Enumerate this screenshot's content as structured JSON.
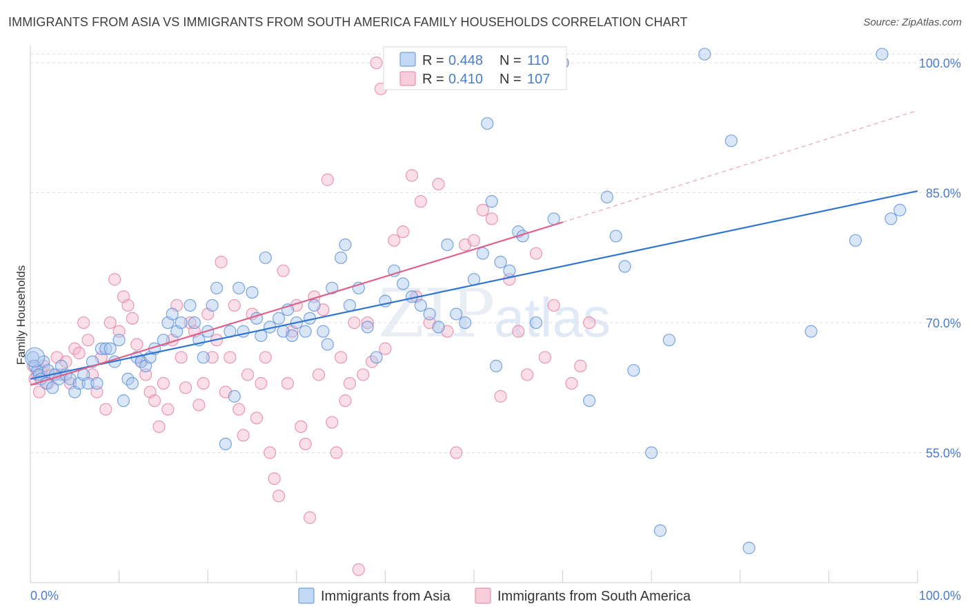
{
  "header": {
    "title": "IMMIGRANTS FROM ASIA VS IMMIGRANTS FROM SOUTH AMERICA FAMILY HOUSEHOLDS CORRELATION CHART",
    "source": "Source: ZipAtlas.com"
  },
  "watermark": {
    "zip": "ZIP",
    "atlas": "atlas"
  },
  "colors": {
    "asia_fill": "#a9c7ef",
    "asia_stroke": "#5b8fd6",
    "asia_line": "#2f74d0",
    "sa_fill": "#f5b8cb",
    "sa_stroke": "#e57fa0",
    "sa_line": "#e0608a",
    "grid": "#dddddd",
    "tick_text": "#4a7cc8"
  },
  "stats": {
    "asia": {
      "r_label": "R =",
      "r_value": "0.448",
      "n_label": "N =",
      "n_value": "110"
    },
    "sa": {
      "r_label": "R =",
      "r_value": "0.410",
      "n_label": "N =",
      "n_value": "107"
    }
  },
  "chart_data": {
    "type": "scatter",
    "title": "IMMIGRANTS FROM ASIA VS IMMIGRANTS FROM SOUTH AMERICA FAMILY HOUSEHOLDS CORRELATION CHART",
    "xlabel": "",
    "ylabel": "Family Households",
    "xlim": [
      0,
      100
    ],
    "ylim": [
      40,
      102
    ],
    "x_tick_labels": [
      "0.0%",
      "100.0%"
    ],
    "y_ticks": [
      55,
      70,
      85,
      100
    ],
    "y_tick_labels": [
      "55.0%",
      "70.0%",
      "85.0%",
      "100.0%"
    ],
    "legend": [
      "Immigrants from Asia",
      "Immigrants from South America"
    ],
    "series": [
      {
        "name": "Immigrants from Asia",
        "trend": {
          "x0": 0,
          "y0": 63.5,
          "x1": 100,
          "y1": 85.2
        },
        "points": [
          [
            0.3,
            66
          ],
          [
            0.5,
            65
          ],
          [
            0.8,
            64.5
          ],
          [
            1.0,
            64
          ],
          [
            1.2,
            63.5
          ],
          [
            1.5,
            65.5
          ],
          [
            1.8,
            63
          ],
          [
            2.0,
            64.5
          ],
          [
            2.5,
            62.5
          ],
          [
            2.8,
            64
          ],
          [
            3.2,
            63.5
          ],
          [
            3.5,
            65
          ],
          [
            4.0,
            64
          ],
          [
            4.5,
            63.5
          ],
          [
            5.0,
            62
          ],
          [
            5.5,
            63
          ],
          [
            6.0,
            64
          ],
          [
            6.5,
            63
          ],
          [
            7.0,
            65.5
          ],
          [
            7.5,
            63
          ],
          [
            8.0,
            67
          ],
          [
            8.5,
            67
          ],
          [
            9.0,
            67
          ],
          [
            9.5,
            65.5
          ],
          [
            10,
            68
          ],
          [
            10.5,
            61
          ],
          [
            11,
            63.5
          ],
          [
            11.5,
            63
          ],
          [
            12,
            66
          ],
          [
            12.5,
            65.5
          ],
          [
            13,
            65
          ],
          [
            13.5,
            66
          ],
          [
            14,
            67
          ],
          [
            15,
            68
          ],
          [
            15.5,
            70
          ],
          [
            16,
            71
          ],
          [
            16.5,
            69
          ],
          [
            17,
            70
          ],
          [
            18,
            72
          ],
          [
            18.5,
            70
          ],
          [
            19,
            68
          ],
          [
            19.5,
            66
          ],
          [
            20,
            69
          ],
          [
            20.5,
            72
          ],
          [
            21,
            74
          ],
          [
            22,
            56
          ],
          [
            22.5,
            69
          ],
          [
            23,
            61.5
          ],
          [
            23.5,
            74
          ],
          [
            24,
            69
          ],
          [
            25,
            73.5
          ],
          [
            25.5,
            70.5
          ],
          [
            26,
            68.5
          ],
          [
            26.5,
            77.5
          ],
          [
            27,
            69.5
          ],
          [
            28,
            70.5
          ],
          [
            28.5,
            69
          ],
          [
            29,
            71.5
          ],
          [
            29.5,
            68.5
          ],
          [
            30,
            70
          ],
          [
            31,
            69
          ],
          [
            31.5,
            70.5
          ],
          [
            32,
            72
          ],
          [
            33,
            69
          ],
          [
            33.5,
            67.5
          ],
          [
            34,
            74
          ],
          [
            35,
            77.5
          ],
          [
            35.5,
            79
          ],
          [
            36,
            72
          ],
          [
            37,
            74
          ],
          [
            38,
            69.5
          ],
          [
            39,
            66
          ],
          [
            40,
            72.5
          ],
          [
            41,
            76
          ],
          [
            42,
            74.5
          ],
          [
            43,
            73
          ],
          [
            44,
            72
          ],
          [
            45,
            71
          ],
          [
            46,
            69.5
          ],
          [
            47,
            79
          ],
          [
            48,
            71
          ],
          [
            49,
            70
          ],
          [
            50,
            75
          ],
          [
            51,
            78
          ],
          [
            51.5,
            93
          ],
          [
            52,
            84
          ],
          [
            52.5,
            65
          ],
          [
            53,
            77
          ],
          [
            54,
            76
          ],
          [
            55,
            80.5
          ],
          [
            55.5,
            80
          ],
          [
            57,
            70
          ],
          [
            59,
            82
          ],
          [
            60,
            100
          ],
          [
            63,
            61
          ],
          [
            65,
            84.5
          ],
          [
            66,
            80
          ],
          [
            67,
            76.5
          ],
          [
            68,
            64.5
          ],
          [
            70,
            55
          ],
          [
            71,
            46
          ],
          [
            72,
            68
          ],
          [
            76,
            101
          ],
          [
            79,
            91
          ],
          [
            81,
            44
          ],
          [
            88,
            69
          ],
          [
            93,
            79.5
          ],
          [
            96,
            101
          ],
          [
            97,
            82
          ],
          [
            98,
            83
          ]
        ]
      },
      {
        "name": "Immigrants from South America",
        "trend": {
          "x0": 0,
          "y0": 62.8,
          "x1": 60,
          "y1": 81.6,
          "dash_x1": 100,
          "dash_y1": 94.5
        },
        "points": [
          [
            0.3,
            65
          ],
          [
            0.5,
            63.5
          ],
          [
            0.8,
            64
          ],
          [
            1.0,
            62
          ],
          [
            1.2,
            64.5
          ],
          [
            1.5,
            65
          ],
          [
            2.0,
            63
          ],
          [
            2.5,
            64
          ],
          [
            3.0,
            66
          ],
          [
            3.5,
            64
          ],
          [
            4.0,
            65.5
          ],
          [
            4.5,
            63
          ],
          [
            5.0,
            67
          ],
          [
            5.5,
            66.5
          ],
          [
            6.0,
            70
          ],
          [
            6.5,
            68
          ],
          [
            7.0,
            64
          ],
          [
            7.5,
            62
          ],
          [
            8.0,
            66
          ],
          [
            8.5,
            60
          ],
          [
            9.0,
            70
          ],
          [
            9.5,
            75
          ],
          [
            10,
            69
          ],
          [
            10.5,
            73
          ],
          [
            11,
            72
          ],
          [
            11.5,
            70.5
          ],
          [
            12,
            67.5
          ],
          [
            12.5,
            65.5
          ],
          [
            13,
            64
          ],
          [
            13.5,
            62
          ],
          [
            14,
            61
          ],
          [
            14.5,
            58
          ],
          [
            15,
            63
          ],
          [
            15.5,
            60
          ],
          [
            16,
            68
          ],
          [
            16.5,
            72
          ],
          [
            17,
            66
          ],
          [
            17.5,
            62.5
          ],
          [
            18,
            70
          ],
          [
            18.5,
            69
          ],
          [
            19,
            60.5
          ],
          [
            19.5,
            63
          ],
          [
            20,
            71
          ],
          [
            20.5,
            66
          ],
          [
            21,
            68
          ],
          [
            21.5,
            77
          ],
          [
            22,
            62
          ],
          [
            22.5,
            66
          ],
          [
            23,
            72
          ],
          [
            23.5,
            60
          ],
          [
            24,
            57
          ],
          [
            24.5,
            64
          ],
          [
            25,
            71
          ],
          [
            25.5,
            59
          ],
          [
            26,
            63
          ],
          [
            26.5,
            66
          ],
          [
            27,
            55
          ],
          [
            27.5,
            52
          ],
          [
            28,
            50
          ],
          [
            28.5,
            76
          ],
          [
            29,
            63
          ],
          [
            29.5,
            69
          ],
          [
            30,
            72
          ],
          [
            30.5,
            58
          ],
          [
            31,
            56
          ],
          [
            31.5,
            47.5
          ],
          [
            32,
            73
          ],
          [
            32.5,
            64
          ],
          [
            33,
            71.5
          ],
          [
            33.5,
            86.5
          ],
          [
            34,
            58.5
          ],
          [
            34.5,
            55
          ],
          [
            35,
            66
          ],
          [
            35.5,
            61
          ],
          [
            36,
            63
          ],
          [
            36.5,
            70
          ],
          [
            37,
            41.5
          ],
          [
            37.5,
            64
          ],
          [
            38,
            70
          ],
          [
            38.5,
            65.5
          ],
          [
            39,
            100
          ],
          [
            39.5,
            97
          ],
          [
            40,
            67
          ],
          [
            41,
            79.5
          ],
          [
            42,
            80.5
          ],
          [
            43,
            87
          ],
          [
            43.5,
            73
          ],
          [
            44,
            84
          ],
          [
            45,
            70
          ],
          [
            46,
            86
          ],
          [
            47,
            69
          ],
          [
            48,
            55
          ],
          [
            49,
            79
          ],
          [
            50,
            79.5
          ],
          [
            51,
            83
          ],
          [
            52,
            82
          ],
          [
            53,
            61.5
          ],
          [
            54,
            75
          ],
          [
            55,
            69
          ],
          [
            56,
            64
          ],
          [
            57,
            78
          ],
          [
            58,
            66
          ],
          [
            59,
            72
          ],
          [
            60,
            100
          ],
          [
            61,
            63
          ],
          [
            62,
            65
          ],
          [
            63,
            70
          ]
        ]
      }
    ]
  },
  "legend": {
    "asia_label": "Immigrants from Asia",
    "sa_label": "Immigrants from South America"
  }
}
